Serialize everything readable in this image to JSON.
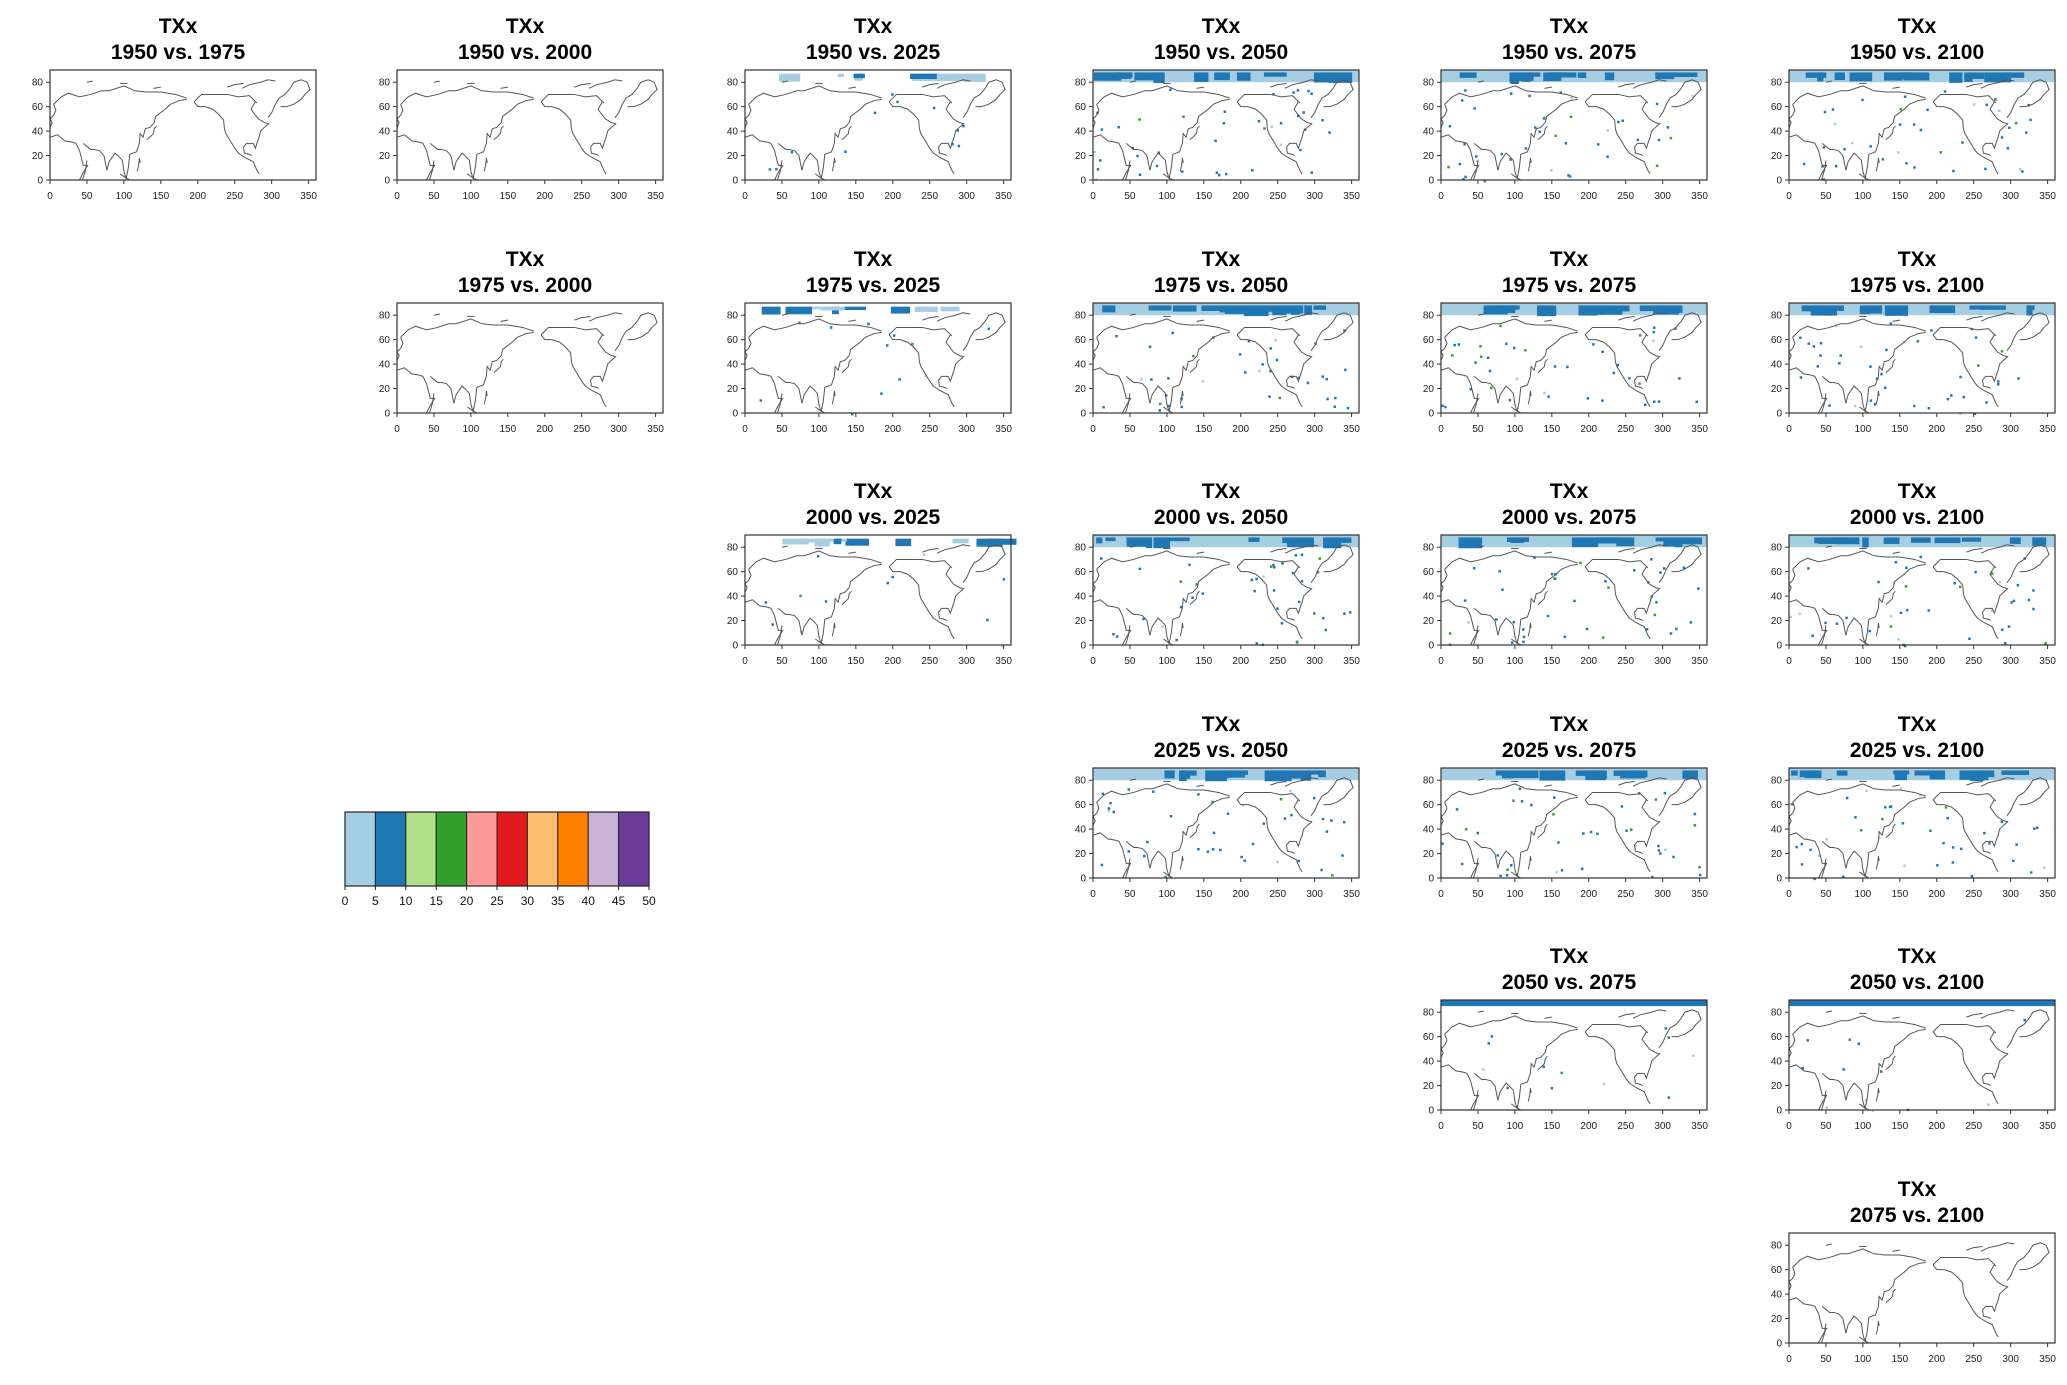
{
  "figure": {
    "variable": "TXx",
    "x_ticks": [
      "0",
      "50",
      "100",
      "150",
      "200",
      "250",
      "300",
      "350"
    ],
    "y_ticks": [
      "0",
      "20",
      "40",
      "60",
      "80"
    ],
    "x_range": [
      0,
      360
    ],
    "y_range": [
      0,
      90
    ],
    "land_outline_color": "#555555",
    "panels": [
      {
        "row": 0,
        "col": 0,
        "title": "TXx",
        "subtitle": "1950 vs. 1975",
        "polar_band": "none"
      },
      {
        "row": 0,
        "col": 1,
        "title": "TXx",
        "subtitle": "1950 vs. 2000",
        "polar_band": "none"
      },
      {
        "row": 0,
        "col": 2,
        "title": "TXx",
        "subtitle": "1950 vs. 2025",
        "polar_band": "patchy"
      },
      {
        "row": 0,
        "col": 3,
        "title": "TXx",
        "subtitle": "1950 vs. 2050",
        "polar_band": "full"
      },
      {
        "row": 0,
        "col": 4,
        "title": "TXx",
        "subtitle": "1950 vs. 2075",
        "polar_band": "full"
      },
      {
        "row": 0,
        "col": 5,
        "title": "TXx",
        "subtitle": "1950 vs. 2100",
        "polar_band": "full"
      },
      {
        "row": 1,
        "col": 1,
        "title": "TXx",
        "subtitle": "1975 vs. 2000",
        "polar_band": "none"
      },
      {
        "row": 1,
        "col": 2,
        "title": "TXx",
        "subtitle": "1975 vs. 2025",
        "polar_band": "patchy"
      },
      {
        "row": 1,
        "col": 3,
        "title": "TXx",
        "subtitle": "1975 vs. 2050",
        "polar_band": "full"
      },
      {
        "row": 1,
        "col": 4,
        "title": "TXx",
        "subtitle": "1975 vs. 2075",
        "polar_band": "full"
      },
      {
        "row": 1,
        "col": 5,
        "title": "TXx",
        "subtitle": "1975 vs. 2100",
        "polar_band": "full"
      },
      {
        "row": 2,
        "col": 2,
        "title": "TXx",
        "subtitle": "2000 vs. 2025",
        "polar_band": "patchy"
      },
      {
        "row": 2,
        "col": 3,
        "title": "TXx",
        "subtitle": "2000 vs. 2050",
        "polar_band": "full"
      },
      {
        "row": 2,
        "col": 4,
        "title": "TXx",
        "subtitle": "2000 vs. 2075",
        "polar_band": "full"
      },
      {
        "row": 2,
        "col": 5,
        "title": "TXx",
        "subtitle": "2000 vs. 2100",
        "polar_band": "full"
      },
      {
        "row": 3,
        "col": 3,
        "title": "TXx",
        "subtitle": "2025 vs. 2050",
        "polar_band": "full"
      },
      {
        "row": 3,
        "col": 4,
        "title": "TXx",
        "subtitle": "2025 vs. 2075",
        "polar_band": "full"
      },
      {
        "row": 3,
        "col": 5,
        "title": "TXx",
        "subtitle": "2025 vs. 2100",
        "polar_band": "full"
      },
      {
        "row": 4,
        "col": 4,
        "title": "TXx",
        "subtitle": "2050 vs. 2075",
        "polar_band": "thin"
      },
      {
        "row": 4,
        "col": 5,
        "title": "TXx",
        "subtitle": "2050 vs. 2100",
        "polar_band": "thin"
      },
      {
        "row": 5,
        "col": 5,
        "title": "TXx",
        "subtitle": "2075 vs. 2100",
        "polar_band": "none"
      }
    ]
  },
  "legend": {
    "colors": [
      "#a6cee3",
      "#1f78b4",
      "#b2df8a",
      "#33a02c",
      "#fb9a99",
      "#e31a1c",
      "#fdbf6f",
      "#ff7f00",
      "#cab2d6",
      "#6a3d9a"
    ],
    "labels": [
      "0",
      "5",
      "10",
      "15",
      "20",
      "25",
      "30",
      "35",
      "40",
      "45",
      "50"
    ]
  }
}
